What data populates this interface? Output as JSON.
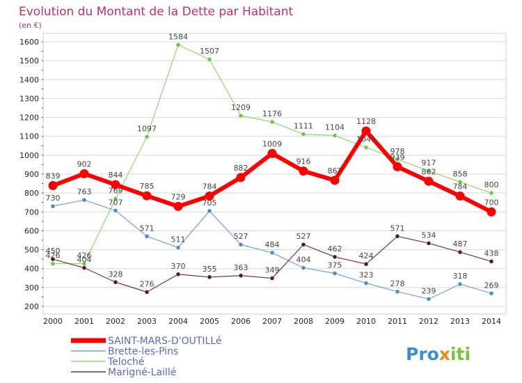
{
  "title": "Evolution du Montant de la Dette par Habitant",
  "subtitle": "(en €)",
  "logo": "Proxiti",
  "colors": {
    "title": "#c0306a",
    "legend_text": "#5a6abf",
    "axis_text": "#222222",
    "grid": "#d8d8d8",
    "plot_border": "#cccccc",
    "tick_marks": "#d6002a"
  },
  "chart_data": {
    "type": "line",
    "title": "Evolution du Montant de la Dette par Habitant",
    "subtitle": "(en €)",
    "x": [
      "2000",
      "2001",
      "2002",
      "2003",
      "2004",
      "2005",
      "2006",
      "2007",
      "2008",
      "2009",
      "2010",
      "2011",
      "2012",
      "2013",
      "2014"
    ],
    "ylim": [
      200,
      1600
    ],
    "yticks": [
      200,
      300,
      400,
      500,
      600,
      700,
      800,
      900,
      1000,
      1100,
      1200,
      1300,
      1400,
      1500,
      1600
    ],
    "grid": true,
    "legend_position": "bottom-left",
    "series": [
      {
        "name": "Teloché",
        "color": "#8fd86a",
        "marker": "#6cc83e",
        "emphasis": false,
        "values": [
          426,
          426,
          769,
          1097,
          1584,
          1507,
          1209,
          1176,
          1111,
          1104,
          1041,
          978,
          917,
          858,
          800
        ]
      },
      {
        "name": "Brette-les-Pins",
        "color": "#6fa3d3",
        "marker": "#4f89c6",
        "emphasis": false,
        "values": [
          730,
          763,
          707,
          571,
          511,
          705,
          527,
          484,
          404,
          375,
          323,
          278,
          239,
          318,
          269
        ]
      },
      {
        "name": "Marigné-Laillé",
        "color": "#7a2f3c",
        "marker": "#5a1420",
        "emphasis": false,
        "values": [
          450,
          404,
          328,
          276,
          370,
          355,
          363,
          349,
          527,
          462,
          424,
          571,
          534,
          487,
          438
        ]
      },
      {
        "name": "SAINT-MARS-D'OUTILLé",
        "color": "#ff0000",
        "marker": "#ff0000",
        "emphasis": true,
        "values": [
          839,
          902,
          844,
          785,
          729,
          784,
          882,
          1009,
          916,
          867,
          1128,
          939,
          862,
          784,
          700
        ]
      }
    ],
    "legend_order": [
      "SAINT-MARS-D'OUTILLé",
      "Brette-les-Pins",
      "Teloché",
      "Marigné-Laillé"
    ]
  }
}
